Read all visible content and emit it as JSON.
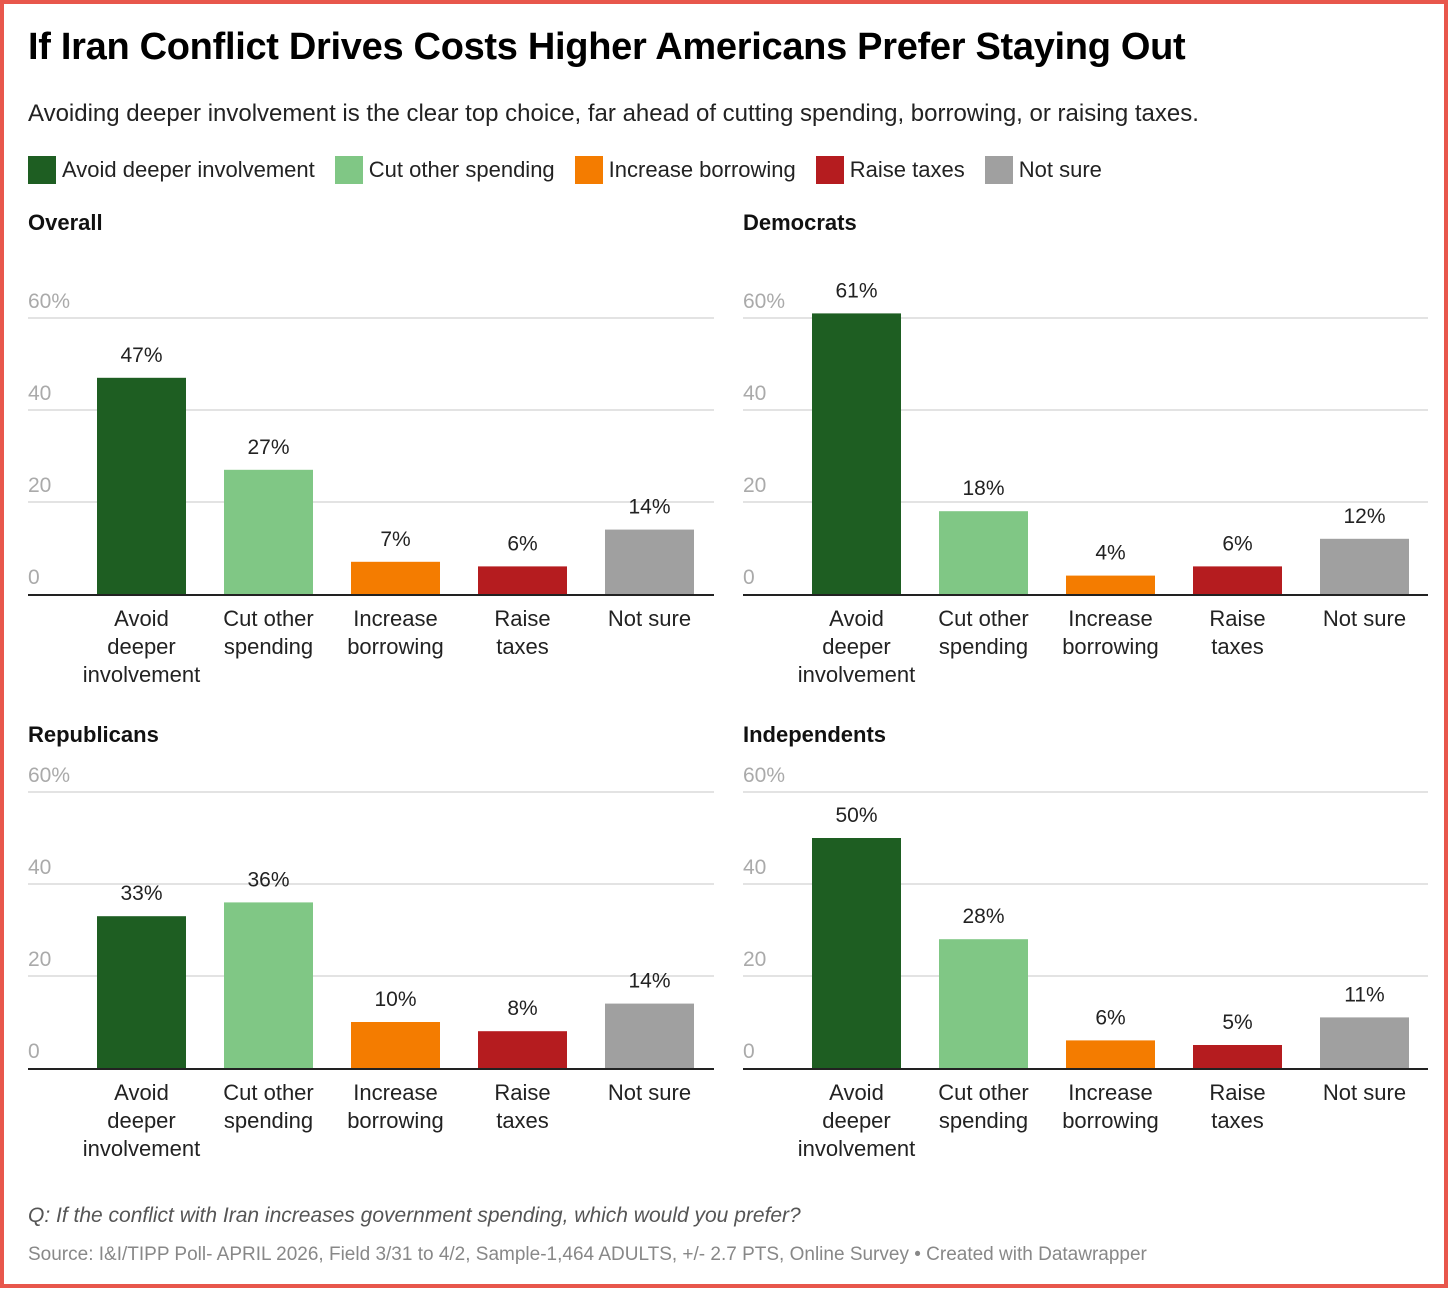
{
  "header": {
    "title": "If Iran Conflict Drives Costs Higher Americans Prefer Staying Out",
    "subtitle": "Avoiding deeper involvement is the clear top choice, far ahead of cutting spending, borrowing, or raising taxes."
  },
  "legend": [
    {
      "label": "Avoid deeper involvement",
      "color": "#1e5e22"
    },
    {
      "label": "Cut other spending",
      "color": "#80c785"
    },
    {
      "label": "Increase borrowing",
      "color": "#f47c00"
    },
    {
      "label": "Raise taxes",
      "color": "#b51c1f"
    },
    {
      "label": "Not sure",
      "color": "#a0a0a0"
    }
  ],
  "footer": {
    "notes": "Q: If the conflict with Iran increases government spending, which would you prefer?",
    "source": "Source: I&I/TIPP Poll- APRIL 2026, Field 3/31 to 4/2, Sample-1,464 ADULTS, +/- 2.7 PTS, Online Survey • Created with Datawrapper"
  },
  "chart_data": [
    {
      "type": "bar",
      "title": "Overall",
      "categories": [
        "Avoid deeper involvement",
        "Cut other spending",
        "Increase borrowing",
        "Raise taxes",
        "Not sure"
      ],
      "category_lines": [
        [
          "Avoid",
          "deeper",
          "involvement"
        ],
        [
          "Cut other",
          "spending"
        ],
        [
          "Increase",
          "borrowing"
        ],
        [
          "Raise",
          "taxes"
        ],
        [
          "Not sure"
        ]
      ],
      "values": [
        47,
        27,
        7,
        6,
        14
      ],
      "value_labels": [
        "47%",
        "27%",
        "7%",
        "6%",
        "14%"
      ],
      "colors": [
        "#1e5e22",
        "#80c785",
        "#f47c00",
        "#b51c1f",
        "#a0a0a0"
      ],
      "yticks": [
        0,
        20,
        40,
        60
      ],
      "ytick_labels": [
        "0",
        "20",
        "40",
        "60%"
      ],
      "ylim": [
        0,
        60
      ],
      "xlabel": "",
      "ylabel": "",
      "grid": true
    },
    {
      "type": "bar",
      "title": "Democrats",
      "categories": [
        "Avoid deeper involvement",
        "Cut other spending",
        "Increase borrowing",
        "Raise taxes",
        "Not sure"
      ],
      "category_lines": [
        [
          "Avoid",
          "deeper",
          "involvement"
        ],
        [
          "Cut other",
          "spending"
        ],
        [
          "Increase",
          "borrowing"
        ],
        [
          "Raise",
          "taxes"
        ],
        [
          "Not sure"
        ]
      ],
      "values": [
        61,
        18,
        4,
        6,
        12
      ],
      "value_labels": [
        "61%",
        "18%",
        "4%",
        "6%",
        "12%"
      ],
      "colors": [
        "#1e5e22",
        "#80c785",
        "#f47c00",
        "#b51c1f",
        "#a0a0a0"
      ],
      "yticks": [
        0,
        20,
        40,
        60
      ],
      "ytick_labels": [
        "0",
        "20",
        "40",
        "60%"
      ],
      "ylim": [
        0,
        60
      ],
      "xlabel": "",
      "ylabel": "",
      "grid": true
    },
    {
      "type": "bar",
      "title": "Republicans",
      "categories": [
        "Avoid deeper involvement",
        "Cut other spending",
        "Increase borrowing",
        "Raise taxes",
        "Not sure"
      ],
      "category_lines": [
        [
          "Avoid",
          "deeper",
          "involvement"
        ],
        [
          "Cut other",
          "spending"
        ],
        [
          "Increase",
          "borrowing"
        ],
        [
          "Raise",
          "taxes"
        ],
        [
          "Not sure"
        ]
      ],
      "values": [
        33,
        36,
        10,
        8,
        14
      ],
      "value_labels": [
        "33%",
        "36%",
        "10%",
        "8%",
        "14%"
      ],
      "colors": [
        "#1e5e22",
        "#80c785",
        "#f47c00",
        "#b51c1f",
        "#a0a0a0"
      ],
      "yticks": [
        0,
        20,
        40,
        60
      ],
      "ytick_labels": [
        "0",
        "20",
        "40",
        "60%"
      ],
      "ylim": [
        0,
        60
      ],
      "xlabel": "",
      "ylabel": "",
      "grid": true
    },
    {
      "type": "bar",
      "title": "Independents",
      "categories": [
        "Avoid deeper involvement",
        "Cut other spending",
        "Increase borrowing",
        "Raise taxes",
        "Not sure"
      ],
      "category_lines": [
        [
          "Avoid",
          "deeper",
          "involvement"
        ],
        [
          "Cut other",
          "spending"
        ],
        [
          "Increase",
          "borrowing"
        ],
        [
          "Raise",
          "taxes"
        ],
        [
          "Not sure"
        ]
      ],
      "values": [
        50,
        28,
        6,
        5,
        11
      ],
      "value_labels": [
        "50%",
        "28%",
        "6%",
        "5%",
        "11%"
      ],
      "colors": [
        "#1e5e22",
        "#80c785",
        "#f47c00",
        "#b51c1f",
        "#a0a0a0"
      ],
      "yticks": [
        0,
        20,
        40,
        60
      ],
      "ytick_labels": [
        "0",
        "20",
        "40",
        "60%"
      ],
      "ylim": [
        0,
        60
      ],
      "xlabel": "",
      "ylabel": "",
      "grid": true
    }
  ]
}
